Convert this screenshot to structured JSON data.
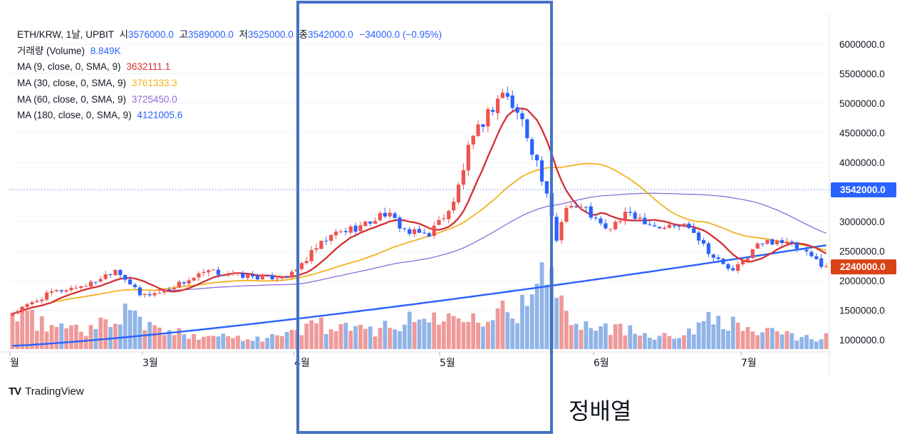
{
  "header": {
    "symbol": "ETH/KRW, 1날, UPBIT",
    "open_label": "시",
    "open": "3576000.0",
    "high_label": "고",
    "high": "3589000.0",
    "low_label": "저",
    "low": "3525000.0",
    "close_label": "종",
    "close": "3542000.0",
    "change": "−34000.0 (−0.95%)"
  },
  "indicators": {
    "volume": {
      "label": "거래량 (Volume)",
      "value": "8.849K",
      "color": "#2962FF"
    },
    "ma9": {
      "label": "MA (9, close, 0, SMA, 9)",
      "value": "3632111.1",
      "color": "#D32F2F"
    },
    "ma30": {
      "label": "MA (30, close, 0, SMA, 9)",
      "value": "3761333.3",
      "color": "#F2B21F"
    },
    "ma60": {
      "label": "MA (60, close, 0, SMA, 9)",
      "value": "3725450.0",
      "color": "#8E6AD6"
    },
    "ma180": {
      "label": "MA (180, close, 0, SMA, 9)",
      "value": "4121005.6",
      "color": "#2962FF"
    }
  },
  "brand": {
    "logo": "TV",
    "name": "TradingView"
  },
  "annotation": {
    "text": "정배열",
    "box_color": "#4472C4"
  },
  "chart_data": {
    "type": "candlestick",
    "yaxis": {
      "ticks": [
        1000000,
        1500000,
        2000000,
        2500000,
        3000000,
        3500000,
        4000000,
        4500000,
        5000000,
        5500000,
        6000000
      ],
      "tick_labels": [
        "1000000.0",
        "1500000.0",
        "2000000.0",
        "2500000.0",
        "3000000.0",
        "3500000.0",
        "4000000.0",
        "4500000.0",
        "5000000.0",
        "5500000.0",
        "6000000.0"
      ],
      "ylim": [
        900000,
        6300000
      ]
    },
    "xaxis": {
      "months": [
        "월",
        "3월",
        "4월",
        "5월",
        "6월",
        "7월"
      ]
    },
    "price_labels": [
      {
        "value": 3542000,
        "text": "3542000.0",
        "color": "#2962FF"
      },
      {
        "value": 2240000,
        "text": "2240000.0",
        "color": "#D84315"
      }
    ],
    "colors": {
      "up": "#EF5350",
      "down": "#2962FF"
    },
    "anchors": [
      {
        "t": 0,
        "close": 1450000,
        "vol": 1.1
      },
      {
        "t": 8,
        "close": 1800000,
        "vol": 0.8
      },
      {
        "t": 16,
        "close": 1950000,
        "vol": 0.7
      },
      {
        "t": 21,
        "close": 2200000,
        "vol": 0.9
      },
      {
        "t": 23,
        "close": 2050000,
        "vol": 1.6
      },
      {
        "t": 26,
        "close": 1750000,
        "vol": 0.9
      },
      {
        "t": 30,
        "close": 1800000,
        "vol": 0.6
      },
      {
        "t": 34,
        "close": 1950000,
        "vol": 0.5
      },
      {
        "t": 40,
        "close": 2150000,
        "vol": 0.5
      },
      {
        "t": 45,
        "close": 2100000,
        "vol": 0.4
      },
      {
        "t": 52,
        "close": 2050000,
        "vol": 0.4
      },
      {
        "t": 57,
        "close": 2100000,
        "vol": 0.5
      },
      {
        "t": 62,
        "close": 2550000,
        "vol": 0.9
      },
      {
        "t": 66,
        "close": 2800000,
        "vol": 0.7
      },
      {
        "t": 72,
        "close": 2950000,
        "vol": 0.6
      },
      {
        "t": 76,
        "close": 3150000,
        "vol": 0.8
      },
      {
        "t": 81,
        "close": 2800000,
        "vol": 0.9
      },
      {
        "t": 85,
        "close": 2800000,
        "vol": 1.1
      },
      {
        "t": 90,
        "close": 3300000,
        "vol": 1.0
      },
      {
        "t": 93,
        "close": 4200000,
        "vol": 1.5
      },
      {
        "t": 96,
        "close": 4700000,
        "vol": 1.2
      },
      {
        "t": 100,
        "close": 5200000,
        "vol": 1.3
      },
      {
        "t": 104,
        "close": 4700000,
        "vol": 1.4
      },
      {
        "t": 107,
        "close": 4000000,
        "vol": 1.6
      },
      {
        "t": 109,
        "close": 3400000,
        "vol": 3.0
      },
      {
        "t": 111,
        "close": 2700000,
        "vol": 1.9
      },
      {
        "t": 113,
        "close": 3300000,
        "vol": 1.3
      },
      {
        "t": 117,
        "close": 3200000,
        "vol": 0.9
      },
      {
        "t": 121,
        "close": 2850000,
        "vol": 0.8
      },
      {
        "t": 126,
        "close": 3150000,
        "vol": 0.6
      },
      {
        "t": 132,
        "close": 2900000,
        "vol": 0.5
      },
      {
        "t": 138,
        "close": 2950000,
        "vol": 0.5
      },
      {
        "t": 143,
        "close": 2400000,
        "vol": 1.3
      },
      {
        "t": 147,
        "close": 2150000,
        "vol": 0.8
      },
      {
        "t": 152,
        "close": 2600000,
        "vol": 0.6
      },
      {
        "t": 156,
        "close": 2700000,
        "vol": 0.5
      },
      {
        "t": 160,
        "close": 2550000,
        "vol": 0.4
      },
      {
        "t": 166,
        "close": 2240000,
        "vol": 0.4
      }
    ]
  }
}
